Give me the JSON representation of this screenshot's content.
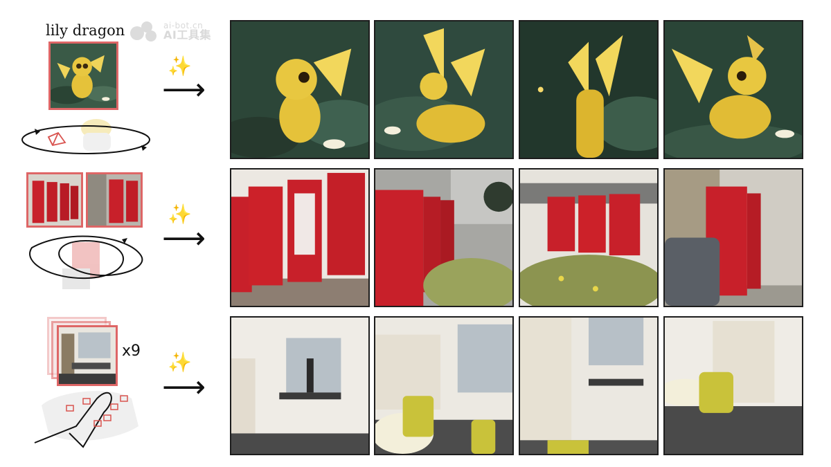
{
  "rows": [
    {
      "caption": "lily dragon",
      "count_label": ""
    },
    {
      "caption": "",
      "count_label": ""
    },
    {
      "caption": "",
      "count_label": "x9"
    }
  ],
  "watermark": {
    "url": "ai-bot.cn",
    "name": "AI工具集"
  },
  "symbols": {
    "sparkle": "✨",
    "arrow": "⟶"
  },
  "icons": [
    "sparkle-icon",
    "right-arrow-icon",
    "orbit-trajectory-icon",
    "camera-frustum-icon"
  ],
  "colors": {
    "thumb_border": "#de6666",
    "frame_border": "#1d1d1d",
    "dragon": "#e5c23a",
    "foliage": "#2f4a3c",
    "phone_box": "#c8202a",
    "office_wall": "#efece6",
    "chair": "#c9c23a"
  }
}
